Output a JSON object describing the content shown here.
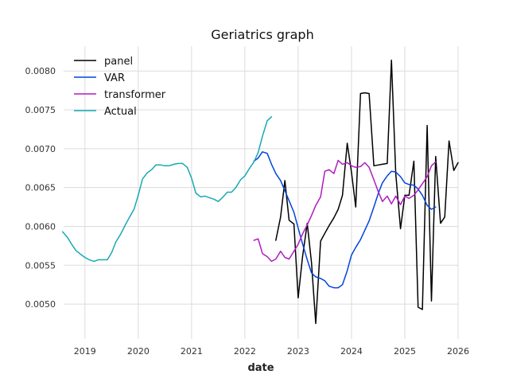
{
  "chart_data": {
    "type": "line",
    "title": "Geriatrics graph",
    "xlabel": "date",
    "ylabel": "",
    "xlim": [
      2018.6,
      2026.0
    ],
    "ylim": [
      0.00455,
      0.00832
    ],
    "x_ticks": [
      2019,
      2020,
      2021,
      2022,
      2023,
      2024,
      2025,
      2026
    ],
    "x_tick_labels": [
      "2019",
      "2020",
      "2021",
      "2022",
      "2023",
      "2024",
      "2025",
      "2026"
    ],
    "y_ticks": [
      0.005,
      0.0055,
      0.006,
      0.0065,
      0.007,
      0.0075,
      0.008
    ],
    "y_tick_labels": [
      "0.0050",
      "0.0055",
      "0.0060",
      "0.0065",
      "0.0070",
      "0.0075",
      "0.0080"
    ],
    "grid": true,
    "legend_position": "top-left",
    "series": [
      {
        "name": "panel",
        "color": "#000000",
        "points": [
          [
            2022.58,
            0.00582
          ],
          [
            2022.67,
            0.00612
          ],
          [
            2022.75,
            0.00659
          ],
          [
            2022.83,
            0.00608
          ],
          [
            2022.92,
            0.00603
          ],
          [
            2023.0,
            0.00508
          ],
          [
            2023.08,
            0.0056
          ],
          [
            2023.17,
            0.00604
          ],
          [
            2023.25,
            0.00553
          ],
          [
            2023.33,
            0.00475
          ],
          [
            2023.42,
            0.00581
          ],
          [
            2023.5,
            0.00591
          ],
          [
            2023.58,
            0.00601
          ],
          [
            2023.67,
            0.00611
          ],
          [
            2023.75,
            0.00622
          ],
          [
            2023.83,
            0.0064
          ],
          [
            2023.92,
            0.00707
          ],
          [
            2024.0,
            0.0067
          ],
          [
            2024.08,
            0.00625
          ],
          [
            2024.17,
            0.00771
          ],
          [
            2024.25,
            0.00772
          ],
          [
            2024.33,
            0.00771
          ],
          [
            2024.42,
            0.00678
          ],
          [
            2024.5,
            0.00679
          ],
          [
            2024.58,
            0.0068
          ],
          [
            2024.67,
            0.00681
          ],
          [
            2024.75,
            0.00814
          ],
          [
            2024.83,
            0.00668
          ],
          [
            2024.92,
            0.00597
          ],
          [
            2025.0,
            0.0064
          ],
          [
            2025.08,
            0.0064
          ],
          [
            2025.17,
            0.00684
          ],
          [
            2025.25,
            0.00496
          ],
          [
            2025.33,
            0.00493
          ],
          [
            2025.42,
            0.0073
          ],
          [
            2025.5,
            0.00504
          ],
          [
            2025.58,
            0.0069
          ],
          [
            2025.67,
            0.00604
          ],
          [
            2025.75,
            0.00612
          ],
          [
            2025.83,
            0.0071
          ],
          [
            2025.92,
            0.00672
          ],
          [
            2026.0,
            0.00682
          ]
        ]
      },
      {
        "name": "VAR",
        "color": "#0044dd",
        "points": [
          [
            2022.17,
            0.00684
          ],
          [
            2022.25,
            0.00688
          ],
          [
            2022.33,
            0.00696
          ],
          [
            2022.42,
            0.00694
          ],
          [
            2022.5,
            0.0068
          ],
          [
            2022.58,
            0.00668
          ],
          [
            2022.67,
            0.00659
          ],
          [
            2022.75,
            0.00646
          ],
          [
            2022.83,
            0.00633
          ],
          [
            2022.92,
            0.00618
          ],
          [
            2023.0,
            0.00598
          ],
          [
            2023.08,
            0.00578
          ],
          [
            2023.17,
            0.00557
          ],
          [
            2023.25,
            0.0054
          ],
          [
            2023.33,
            0.00535
          ],
          [
            2023.42,
            0.00533
          ],
          [
            2023.5,
            0.0053
          ],
          [
            2023.58,
            0.00523
          ],
          [
            2023.67,
            0.00521
          ],
          [
            2023.75,
            0.00521
          ],
          [
            2023.83,
            0.00525
          ],
          [
            2023.92,
            0.00543
          ],
          [
            2024.0,
            0.00563
          ],
          [
            2024.08,
            0.00573
          ],
          [
            2024.17,
            0.00583
          ],
          [
            2024.25,
            0.00595
          ],
          [
            2024.33,
            0.00607
          ],
          [
            2024.42,
            0.00625
          ],
          [
            2024.5,
            0.00642
          ],
          [
            2024.58,
            0.00656
          ],
          [
            2024.67,
            0.00665
          ],
          [
            2024.75,
            0.00671
          ],
          [
            2024.83,
            0.0067
          ],
          [
            2024.92,
            0.00664
          ],
          [
            2025.0,
            0.00656
          ],
          [
            2025.08,
            0.00654
          ],
          [
            2025.17,
            0.00653
          ],
          [
            2025.25,
            0.00648
          ],
          [
            2025.33,
            0.0064
          ],
          [
            2025.42,
            0.00627
          ],
          [
            2025.5,
            0.00622
          ],
          [
            2025.58,
            0.00625
          ]
        ]
      },
      {
        "name": "transformer",
        "color": "#b01cc0",
        "points": [
          [
            2022.17,
            0.00582
          ],
          [
            2022.25,
            0.00584
          ],
          [
            2022.33,
            0.00565
          ],
          [
            2022.42,
            0.00561
          ],
          [
            2022.5,
            0.00555
          ],
          [
            2022.58,
            0.00558
          ],
          [
            2022.67,
            0.00568
          ],
          [
            2022.75,
            0.0056
          ],
          [
            2022.83,
            0.00558
          ],
          [
            2022.92,
            0.00568
          ],
          [
            2023.0,
            0.00577
          ],
          [
            2023.08,
            0.0059
          ],
          [
            2023.17,
            0.00602
          ],
          [
            2023.25,
            0.00614
          ],
          [
            2023.33,
            0.00627
          ],
          [
            2023.42,
            0.00638
          ],
          [
            2023.5,
            0.00671
          ],
          [
            2023.58,
            0.00673
          ],
          [
            2023.67,
            0.00668
          ],
          [
            2023.75,
            0.00685
          ],
          [
            2023.83,
            0.0068
          ],
          [
            2023.92,
            0.00682
          ],
          [
            2024.0,
            0.00678
          ],
          [
            2024.08,
            0.00676
          ],
          [
            2024.17,
            0.00677
          ],
          [
            2024.25,
            0.00682
          ],
          [
            2024.33,
            0.00676
          ],
          [
            2024.42,
            0.0066
          ],
          [
            2024.5,
            0.00645
          ],
          [
            2024.58,
            0.00632
          ],
          [
            2024.67,
            0.00639
          ],
          [
            2024.75,
            0.00629
          ],
          [
            2024.83,
            0.00639
          ],
          [
            2024.92,
            0.00628
          ],
          [
            2025.0,
            0.00639
          ],
          [
            2025.08,
            0.00636
          ],
          [
            2025.17,
            0.0064
          ],
          [
            2025.25,
            0.00647
          ],
          [
            2025.33,
            0.00655
          ],
          [
            2025.42,
            0.00664
          ],
          [
            2025.5,
            0.00678
          ],
          [
            2025.58,
            0.00683
          ]
        ]
      },
      {
        "name": "Actual",
        "color": "#17a9b3",
        "points": [
          [
            2018.58,
            0.00593
          ],
          [
            2018.67,
            0.00586
          ],
          [
            2018.75,
            0.00577
          ],
          [
            2018.83,
            0.00569
          ],
          [
            2018.92,
            0.00564
          ],
          [
            2019.0,
            0.0056
          ],
          [
            2019.08,
            0.00557
          ],
          [
            2019.17,
            0.00555
          ],
          [
            2019.25,
            0.00557
          ],
          [
            2019.33,
            0.00557
          ],
          [
            2019.42,
            0.00557
          ],
          [
            2019.5,
            0.00566
          ],
          [
            2019.58,
            0.0058
          ],
          [
            2019.67,
            0.0059
          ],
          [
            2019.75,
            0.00601
          ],
          [
            2019.83,
            0.00611
          ],
          [
            2019.92,
            0.00622
          ],
          [
            2020.0,
            0.0064
          ],
          [
            2020.08,
            0.00661
          ],
          [
            2020.17,
            0.00669
          ],
          [
            2020.25,
            0.00673
          ],
          [
            2020.33,
            0.00679
          ],
          [
            2020.42,
            0.00679
          ],
          [
            2020.5,
            0.00678
          ],
          [
            2020.58,
            0.00678
          ],
          [
            2020.67,
            0.0068
          ],
          [
            2020.75,
            0.00681
          ],
          [
            2020.83,
            0.00681
          ],
          [
            2020.92,
            0.00676
          ],
          [
            2021.0,
            0.00662
          ],
          [
            2021.08,
            0.00643
          ],
          [
            2021.17,
            0.00638
          ],
          [
            2021.25,
            0.00639
          ],
          [
            2021.33,
            0.00637
          ],
          [
            2021.42,
            0.00635
          ],
          [
            2021.5,
            0.00632
          ],
          [
            2021.58,
            0.00637
          ],
          [
            2021.67,
            0.00644
          ],
          [
            2021.75,
            0.00644
          ],
          [
            2021.83,
            0.0065
          ],
          [
            2021.92,
            0.0066
          ],
          [
            2022.0,
            0.00665
          ],
          [
            2022.08,
            0.00674
          ],
          [
            2022.17,
            0.00683
          ],
          [
            2022.25,
            0.00695
          ],
          [
            2022.33,
            0.00716
          ],
          [
            2022.42,
            0.00736
          ],
          [
            2022.5,
            0.00741
          ]
        ]
      }
    ]
  }
}
